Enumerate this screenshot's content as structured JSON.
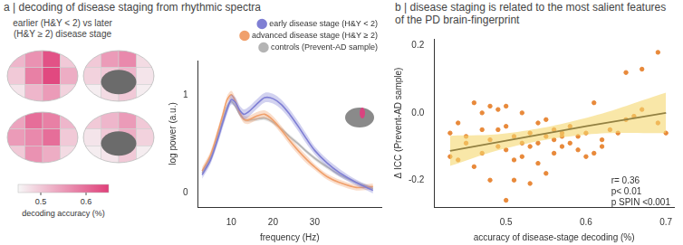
{
  "chart_data": [
    {
      "type": "line",
      "title": "a | decoding of disease staging from rhythmic spectra",
      "x_label": "frequency (Hz)",
      "y_label": "log power (a.u.)",
      "x": [
        3,
        5,
        7,
        8,
        9,
        10,
        11,
        12,
        13,
        14,
        16,
        18,
        20,
        22,
        24,
        26,
        28,
        30,
        33,
        36,
        40,
        44
      ],
      "series": [
        {
          "name": "early disease stage (H&Y < 2)",
          "color": "#7f7fd4",
          "values": [
            0.18,
            0.33,
            0.58,
            0.72,
            0.85,
            0.95,
            0.92,
            0.84,
            0.8,
            0.82,
            0.9,
            0.97,
            0.96,
            0.9,
            0.8,
            0.68,
            0.55,
            0.43,
            0.3,
            0.2,
            0.1,
            0.02
          ],
          "error": [
            0.04,
            0.04,
            0.05,
            0.05,
            0.05,
            0.05,
            0.05,
            0.05,
            0.05,
            0.05,
            0.05,
            0.05,
            0.05,
            0.05,
            0.05,
            0.05,
            0.05,
            0.04,
            0.04,
            0.04,
            0.03,
            0.03
          ]
        },
        {
          "name": "advanced disease stage (H&Y ≥ 2)",
          "color": "#f0a06c",
          "values": [
            0.22,
            0.38,
            0.65,
            0.8,
            0.95,
            1.0,
            0.93,
            0.82,
            0.75,
            0.74,
            0.78,
            0.8,
            0.74,
            0.64,
            0.53,
            0.43,
            0.34,
            0.26,
            0.16,
            0.1,
            0.05,
            0.06
          ],
          "error": [
            0.04,
            0.04,
            0.04,
            0.04,
            0.04,
            0.04,
            0.04,
            0.04,
            0.04,
            0.04,
            0.04,
            0.04,
            0.04,
            0.04,
            0.04,
            0.04,
            0.04,
            0.03,
            0.03,
            0.03,
            0.03,
            0.03
          ]
        },
        {
          "name": "controls (Prevent-AD sample)",
          "color": "#b4b4b4",
          "values": [
            0.2,
            0.35,
            0.6,
            0.75,
            0.88,
            0.93,
            0.88,
            0.8,
            0.75,
            0.74,
            0.75,
            0.76,
            0.72,
            0.65,
            0.57,
            0.5,
            0.42,
            0.35,
            0.26,
            0.18,
            0.1,
            0.04
          ],
          "error": [
            0.02,
            0.02,
            0.02,
            0.02,
            0.02,
            0.02,
            0.02,
            0.02,
            0.02,
            0.02,
            0.02,
            0.02,
            0.02,
            0.02,
            0.02,
            0.02,
            0.02,
            0.02,
            0.02,
            0.02,
            0.02,
            0.02
          ]
        }
      ],
      "xlim": [
        2,
        46
      ],
      "xticks": [
        10,
        20,
        30
      ],
      "ylim": [
        -0.15,
        1.35
      ],
      "yticks": [
        0,
        1
      ],
      "grid": false,
      "legend": "top right"
    },
    {
      "type": "scatter",
      "title": "b | disease staging is related to the most salient features of the PD brain-fingerprint",
      "x_label": "accuracy of disease-stage decoding (%)",
      "y_label": "Δ ICC (Prevent-AD sample)",
      "color": "#e8893a",
      "x": [
        0.43,
        0.43,
        0.44,
        0.44,
        0.45,
        0.45,
        0.46,
        0.46,
        0.47,
        0.47,
        0.47,
        0.48,
        0.48,
        0.48,
        0.49,
        0.49,
        0.49,
        0.5,
        0.5,
        0.5,
        0.5,
        0.51,
        0.51,
        0.51,
        0.52,
        0.52,
        0.52,
        0.53,
        0.53,
        0.53,
        0.54,
        0.54,
        0.54,
        0.55,
        0.55,
        0.55,
        0.56,
        0.56,
        0.56,
        0.57,
        0.57,
        0.57,
        0.58,
        0.58,
        0.59,
        0.59,
        0.6,
        0.6,
        0.61,
        0.61,
        0.62,
        0.62,
        0.63,
        0.64,
        0.65,
        0.65,
        0.66,
        0.67,
        0.67,
        0.69,
        0.69,
        0.7
      ],
      "values": [
        -0.13,
        -0.06,
        -0.14,
        -0.03,
        -0.07,
        -0.09,
        -0.16,
        0.03,
        -0.12,
        0.0,
        -0.05,
        -0.2,
        -0.08,
        0.02,
        -0.1,
        -0.05,
        0.01,
        -0.04,
        -0.11,
        -0.26,
        0.02,
        -0.07,
        -0.14,
        -0.2,
        -0.09,
        0.0,
        -0.13,
        -0.06,
        -0.21,
        -0.1,
        -0.03,
        -0.09,
        -0.15,
        -0.02,
        -0.07,
        -0.18,
        -0.08,
        -0.05,
        -0.12,
        -0.1,
        -0.06,
        -0.07,
        -0.04,
        -0.09,
        -0.11,
        -0.07,
        -0.06,
        -0.13,
        0.03,
        -0.12,
        -0.08,
        -0.1,
        -0.05,
        -0.06,
        -0.02,
        0.12,
        -0.01,
        0.01,
        0.13,
        -0.03,
        0.18,
        -0.06
      ],
      "fit": {
        "x": [
          0.43,
          0.5,
          0.6,
          0.7
        ],
        "values": [
          -0.113,
          -0.083,
          -0.04,
          0.0
        ],
        "error": [
          0.045,
          0.022,
          0.025,
          0.06
        ],
        "color": "#000000",
        "band_color": "#f5d76e"
      },
      "annotations": [
        "r= 0.36",
        "p< 0.01",
        "p SPIN <0.001"
      ],
      "xlim": [
        0.41,
        0.71
      ],
      "xticks": [
        0.5,
        0.6,
        0.7
      ],
      "ylim": [
        -0.28,
        0.22
      ],
      "yticks": [
        -0.2,
        {
          "value": 0,
          "label": "0.0"
        },
        0.2
      ],
      "grid": false
    }
  ],
  "brain_map": {
    "title": "earlier (H&Y < 2) vs later (H&Y ≥ 2) disease stage",
    "views": [
      [
        0.52,
        0.56,
        0.63,
        0.5,
        0.5,
        0.58,
        0.64,
        0.53,
        0.47,
        0.52,
        0.55,
        0.49
      ],
      [
        0.5,
        0.55,
        0.57,
        0.48,
        0.49,
        0.5,
        0.52,
        0.47,
        0.46,
        0.48,
        0.5,
        0.46
      ],
      [
        0.54,
        0.6,
        0.58,
        0.52,
        0.55,
        0.57,
        0.6,
        0.5,
        0.5,
        0.56,
        0.53,
        0.48
      ],
      [
        0.5,
        0.52,
        0.55,
        0.5,
        0.47,
        0.5,
        0.53,
        0.49,
        0.46,
        0.47,
        0.5,
        0.46
      ]
    ],
    "colorbar": {
      "label": "decoding accuracy (%)",
      "range": [
        0.45,
        0.65
      ],
      "ticks": [
        0.5,
        0.6
      ]
    }
  }
}
